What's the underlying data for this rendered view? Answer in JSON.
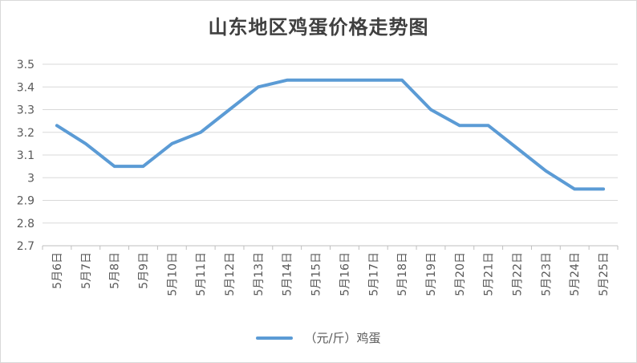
{
  "chart_data": {
    "type": "line",
    "title": "山东地区鸡蛋价格走势图",
    "xlabel": "",
    "ylabel": "",
    "categories": [
      "5月6日",
      "5月7日",
      "5月8日",
      "5月9日",
      "5月10日",
      "5月11日",
      "5月12日",
      "5月13日",
      "5月14日",
      "5月15日",
      "5月16日",
      "5月17日",
      "5月18日",
      "5月19日",
      "5月20日",
      "5月21日",
      "5月22日",
      "5月23日",
      "5月24日",
      "5月25日"
    ],
    "series": [
      {
        "name": "（元/斤）鸡蛋",
        "values": [
          3.23,
          3.15,
          3.05,
          3.05,
          3.15,
          3.2,
          3.3,
          3.4,
          3.43,
          3.43,
          3.43,
          3.43,
          3.43,
          3.3,
          3.23,
          3.23,
          3.13,
          3.03,
          2.95,
          2.95
        ],
        "color": "#5b9bd5"
      }
    ],
    "ylim": [
      2.7,
      3.5
    ],
    "yticks": [
      "2.7",
      "2.8",
      "2.9",
      "3",
      "3.1",
      "3.2",
      "3.3",
      "3.4",
      "3.5"
    ],
    "grid": true,
    "legend": "bottom"
  }
}
